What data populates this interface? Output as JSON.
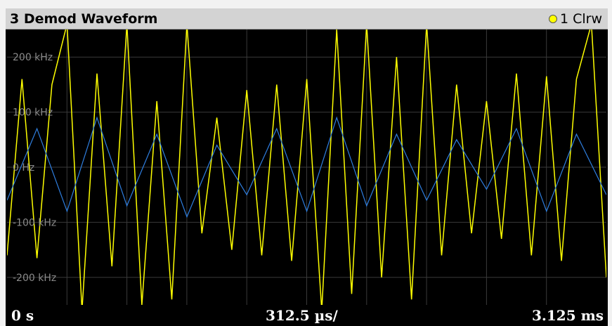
{
  "window": {
    "title": "3 Demod Waveform",
    "trace_label": "1 Clrw",
    "trace_color": "#ffff00"
  },
  "footer": {
    "x_start": "0 s",
    "x_per_div": "312.5 µs/",
    "x_stop": "3.125 ms"
  },
  "chart_data": {
    "type": "line",
    "title": "3 Demod Waveform",
    "xlabel": "",
    "ylabel": "",
    "xlim": [
      0,
      3.125
    ],
    "x_unit": "ms",
    "ylim": [
      -250,
      250
    ],
    "y_unit": "kHz",
    "y_ticks": [
      200,
      100,
      0,
      -100,
      -200
    ],
    "y_tick_labels": [
      "200 kHz",
      "100 kHz",
      "0 Hz",
      "-100 kHz",
      "-200 kHz"
    ],
    "grid": true,
    "x_divisions": 10,
    "legend": "top-right",
    "series": [
      {
        "name": "1 Clrw",
        "color": "#ffff00",
        "x": [
          0.0,
          0.078,
          0.156,
          0.234,
          0.313,
          0.391,
          0.469,
          0.547,
          0.625,
          0.703,
          0.781,
          0.859,
          0.938,
          1.016,
          1.094,
          1.172,
          1.25,
          1.328,
          1.406,
          1.484,
          1.563,
          1.641,
          1.719,
          1.797,
          1.875,
          1.953,
          2.031,
          2.109,
          2.188,
          2.266,
          2.344,
          2.422,
          2.5,
          2.578,
          2.656,
          2.734,
          2.813,
          2.891,
          2.969,
          3.047,
          3.125
        ],
        "y": [
          -160,
          160,
          -165,
          150,
          260,
          -260,
          170,
          -180,
          260,
          -250,
          120,
          -240,
          260,
          -120,
          90,
          -150,
          140,
          -160,
          150,
          -170,
          160,
          -260,
          250,
          -230,
          260,
          -200,
          200,
          -240,
          260,
          -160,
          150,
          -120,
          120,
          -130,
          170,
          -160,
          165,
          -170,
          160,
          260,
          -200
        ]
      },
      {
        "name": "",
        "color": "#2f7fe0",
        "x": [
          0.0,
          0.156,
          0.313,
          0.469,
          0.625,
          0.781,
          0.938,
          1.094,
          1.25,
          1.406,
          1.563,
          1.719,
          1.875,
          2.031,
          2.188,
          2.344,
          2.5,
          2.656,
          2.813,
          2.969,
          3.125
        ],
        "y": [
          -60,
          70,
          -80,
          90,
          -70,
          60,
          -90,
          40,
          -50,
          70,
          -80,
          90,
          -70,
          60,
          -60,
          50,
          -40,
          70,
          -80,
          60,
          -50
        ]
      }
    ]
  }
}
